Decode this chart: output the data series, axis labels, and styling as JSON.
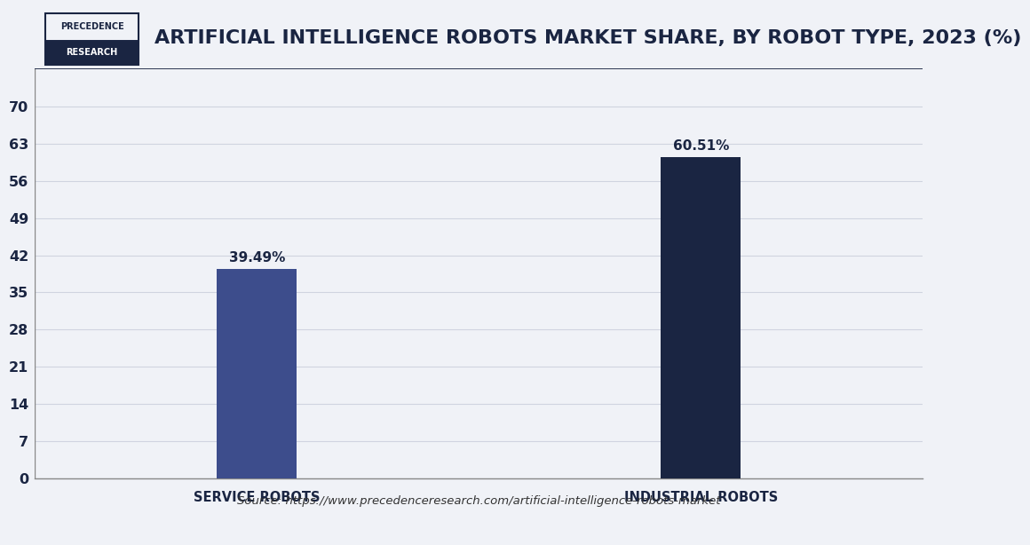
{
  "title": "ARTIFICIAL INTELLIGENCE ROBOTS MARKET SHARE, BY ROBOT TYPE, 2023 (%)",
  "categories": [
    "SERVICE ROBOTS",
    "INDUSTRIAL ROBOTS"
  ],
  "values": [
    39.49,
    60.51
  ],
  "bar_colors": [
    "#3d4d8c",
    "#1a2542"
  ],
  "bar_labels": [
    "39.49%",
    "60.51%"
  ],
  "ylim": [
    0,
    77
  ],
  "yticks": [
    0,
    7,
    14,
    21,
    28,
    35,
    42,
    49,
    56,
    63,
    70
  ],
  "source_text": "Source: https://www.precedenceresearch.com/artificial-intelligence-robots-market",
  "background_color": "#f0f2f7",
  "chart_bg_color": "#f0f2f7",
  "grid_color": "#d0d4e0",
  "bar_width": 0.18,
  "title_fontsize": 16,
  "label_fontsize": 10.5,
  "tick_fontsize": 11.5,
  "annotation_fontsize": 11,
  "source_fontsize": 9.5,
  "logo_text_line1": "PRECEDENCE",
  "logo_text_line2": "RESEARCH",
  "logo_top_bg": "#f0f2f7",
  "logo_top_text": "#1a2542",
  "logo_bot_bg": "#1a2542",
  "logo_bot_text": "#ffffff",
  "logo_border_color": "#1a2542",
  "header_line_color": "#1a2542",
  "title_color": "#1a2542"
}
